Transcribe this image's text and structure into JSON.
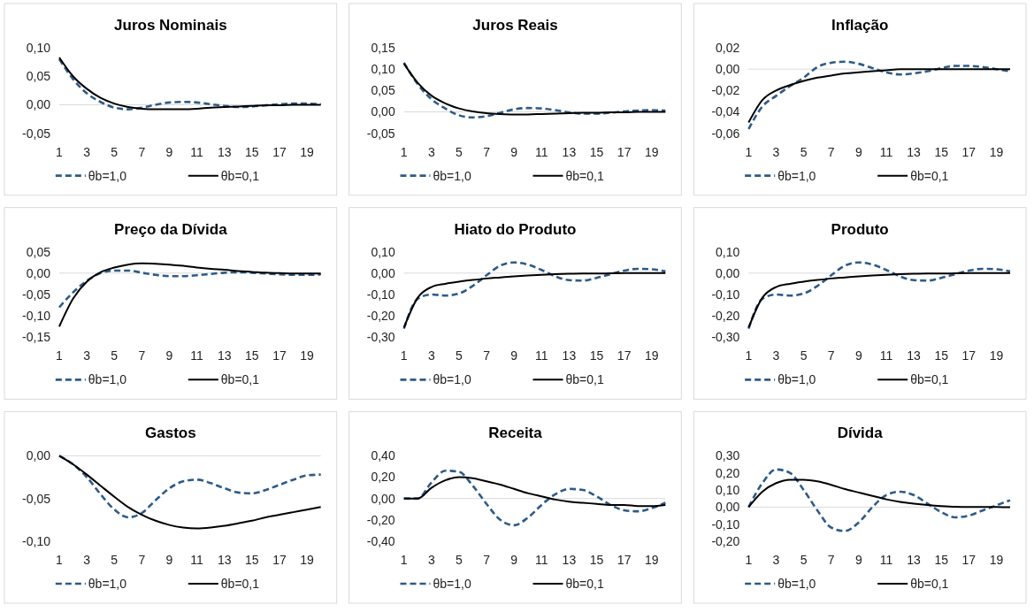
{
  "chart_data": [
    {
      "type": "line",
      "title": "Juros Nominais",
      "x": [
        1,
        2,
        3,
        4,
        5,
        6,
        7,
        8,
        9,
        10,
        11,
        12,
        13,
        14,
        15,
        16,
        17,
        18,
        19,
        20
      ],
      "xlim": [
        1,
        20
      ],
      "xticks": [
        1,
        3,
        5,
        7,
        9,
        11,
        13,
        15,
        17,
        19
      ],
      "ylim": [
        -0.05,
        0.1
      ],
      "yticks": [
        {
          "value": -0.05,
          "label": "-0,05"
        },
        {
          "value": 0,
          "label": "0,00"
        },
        {
          "value": 0.05,
          "label": "0,05"
        },
        {
          "value": 0.1,
          "label": "0,10"
        }
      ],
      "legend": "bottom",
      "series": [
        {
          "name": "θb=1,0",
          "color": "#2e5b87",
          "line_style": "dashed",
          "values": [
            0.08,
            0.045,
            0.02,
            0.005,
            -0.005,
            -0.008,
            -0.005,
            0,
            0.004,
            0.005,
            0.004,
            0.001,
            -0.002,
            -0.004,
            -0.003,
            -0.001,
            0.001,
            0.002,
            0.002,
            0.001
          ]
        },
        {
          "name": "θb=0,1",
          "color": "#000000",
          "line_style": "solid",
          "values": [
            0.083,
            0.05,
            0.028,
            0.012,
            0.002,
            -0.004,
            -0.007,
            -0.008,
            -0.008,
            -0.008,
            -0.007,
            -0.005,
            -0.004,
            -0.003,
            -0.002,
            -0.001,
            -0.001,
            0,
            0,
            0
          ]
        }
      ]
    },
    {
      "type": "line",
      "title": "Juros Reais",
      "x": [
        1,
        2,
        3,
        4,
        5,
        6,
        7,
        8,
        9,
        10,
        11,
        12,
        13,
        14,
        15,
        16,
        17,
        18,
        19,
        20
      ],
      "xlim": [
        1,
        20
      ],
      "xticks": [
        1,
        3,
        5,
        7,
        9,
        11,
        13,
        15,
        17,
        19
      ],
      "ylim": [
        -0.05,
        0.15
      ],
      "yticks": [
        {
          "value": -0.05,
          "label": "-0,05"
        },
        {
          "value": 0,
          "label": "0,00"
        },
        {
          "value": 0.05,
          "label": "0,05"
        },
        {
          "value": 0.1,
          "label": "0,10"
        },
        {
          "value": 0.15,
          "label": "0,15"
        }
      ],
      "legend": "bottom",
      "series": [
        {
          "name": "θb=1,0",
          "color": "#2e5b87",
          "line_style": "dashed",
          "values": [
            0.115,
            0.065,
            0.03,
            0.008,
            -0.008,
            -0.013,
            -0.01,
            -0.002,
            0.006,
            0.009,
            0.008,
            0.004,
            -0.001,
            -0.004,
            -0.004,
            -0.002,
            0.001,
            0.003,
            0.004,
            0.003
          ]
        },
        {
          "name": "θb=0,1",
          "color": "#000000",
          "line_style": "solid",
          "values": [
            0.113,
            0.068,
            0.038,
            0.02,
            0.008,
            0.001,
            -0.003,
            -0.005,
            -0.006,
            -0.006,
            -0.005,
            -0.004,
            -0.003,
            -0.002,
            -0.002,
            -0.001,
            -0.001,
            0,
            0,
            0
          ]
        }
      ]
    },
    {
      "type": "line",
      "title": "Inflação",
      "x": [
        1,
        2,
        3,
        4,
        5,
        6,
        7,
        8,
        9,
        10,
        11,
        12,
        13,
        14,
        15,
        16,
        17,
        18,
        19,
        20
      ],
      "xlim": [
        1,
        20
      ],
      "xticks": [
        1,
        3,
        5,
        7,
        9,
        11,
        13,
        15,
        17,
        19
      ],
      "ylim": [
        -0.06,
        0.02
      ],
      "yticks": [
        {
          "value": -0.06,
          "label": "-0,06"
        },
        {
          "value": -0.04,
          "label": "-0,04"
        },
        {
          "value": -0.02,
          "label": "-0,02"
        },
        {
          "value": 0,
          "label": "0,00"
        },
        {
          "value": 0.02,
          "label": "0,02"
        }
      ],
      "legend": "bottom",
      "series": [
        {
          "name": "θb=1,0",
          "color": "#2e5b87",
          "line_style": "dashed",
          "values": [
            -0.056,
            -0.035,
            -0.025,
            -0.016,
            -0.008,
            0.002,
            0.006,
            0.007,
            0.005,
            0.001,
            -0.003,
            -0.005,
            -0.004,
            -0.002,
            0.001,
            0.003,
            0.003,
            0.002,
            0,
            -0.002
          ]
        },
        {
          "name": "θb=0,1",
          "color": "#000000",
          "line_style": "solid",
          "values": [
            -0.05,
            -0.029,
            -0.02,
            -0.015,
            -0.011,
            -0.008,
            -0.006,
            -0.004,
            -0.003,
            -0.002,
            -0.001,
            0,
            0,
            0,
            0,
            0,
            0,
            0,
            0,
            0
          ]
        }
      ]
    },
    {
      "type": "line",
      "title": "Preço da Dívida",
      "x": [
        1,
        2,
        3,
        4,
        5,
        6,
        7,
        8,
        9,
        10,
        11,
        12,
        13,
        14,
        15,
        16,
        17,
        18,
        19,
        20
      ],
      "xlim": [
        1,
        20
      ],
      "xticks": [
        1,
        3,
        5,
        7,
        9,
        11,
        13,
        15,
        17,
        19
      ],
      "ylim": [
        -0.15,
        0.05
      ],
      "yticks": [
        {
          "value": -0.15,
          "label": "-0,15"
        },
        {
          "value": -0.1,
          "label": "-0,10"
        },
        {
          "value": -0.05,
          "label": "-0,05"
        },
        {
          "value": 0,
          "label": "0,00"
        },
        {
          "value": 0.05,
          "label": "0,05"
        }
      ],
      "legend": "bottom",
      "series": [
        {
          "name": "θb=1,0",
          "color": "#2e5b87",
          "line_style": "dashed",
          "values": [
            -0.08,
            -0.045,
            -0.018,
            0,
            0.006,
            0.006,
            0.001,
            -0.004,
            -0.007,
            -0.007,
            -0.005,
            -0.002,
            0.001,
            0.002,
            0.001,
            -0.001,
            -0.003,
            -0.004,
            -0.004,
            -0.003
          ]
        },
        {
          "name": "θb=0,1",
          "color": "#000000",
          "line_style": "solid",
          "values": [
            -0.125,
            -0.06,
            -0.02,
            0.002,
            0.013,
            0.02,
            0.023,
            0.022,
            0.02,
            0.017,
            0.013,
            0.01,
            0.008,
            0.005,
            0.003,
            0.001,
            0,
            -0.001,
            -0.001,
            -0.001
          ]
        }
      ]
    },
    {
      "type": "line",
      "title": "Hiato do Produto",
      "x": [
        1,
        2,
        3,
        4,
        5,
        6,
        7,
        8,
        9,
        10,
        11,
        12,
        13,
        14,
        15,
        16,
        17,
        18,
        19,
        20
      ],
      "xlim": [
        1,
        20
      ],
      "xticks": [
        1,
        3,
        5,
        7,
        9,
        11,
        13,
        15,
        17,
        19
      ],
      "ylim": [
        -0.3,
        0.1
      ],
      "yticks": [
        {
          "value": -0.3,
          "label": "-0,30"
        },
        {
          "value": -0.2,
          "label": "-0,20"
        },
        {
          "value": -0.1,
          "label": "-0,10"
        },
        {
          "value": 0,
          "label": "0,00"
        },
        {
          "value": 0.1,
          "label": "0,10"
        }
      ],
      "legend": "bottom",
      "series": [
        {
          "name": "θb=1,0",
          "color": "#2e5b87",
          "line_style": "dashed",
          "values": [
            -0.26,
            -0.12,
            -0.1,
            -0.105,
            -0.095,
            -0.06,
            -0.01,
            0.035,
            0.05,
            0.04,
            0.015,
            -0.015,
            -0.033,
            -0.035,
            -0.022,
            -0.005,
            0.012,
            0.02,
            0.018,
            0.008
          ]
        },
        {
          "name": "θb=0,1",
          "color": "#000000",
          "line_style": "solid",
          "values": [
            -0.255,
            -0.115,
            -0.065,
            -0.05,
            -0.04,
            -0.032,
            -0.025,
            -0.02,
            -0.015,
            -0.011,
            -0.008,
            -0.005,
            -0.003,
            -0.002,
            -0.002,
            -0.001,
            0,
            0,
            0,
            0
          ]
        }
      ]
    },
    {
      "type": "line",
      "title": "Produto",
      "x": [
        1,
        2,
        3,
        4,
        5,
        6,
        7,
        8,
        9,
        10,
        11,
        12,
        13,
        14,
        15,
        16,
        17,
        18,
        19,
        20
      ],
      "xlim": [
        1,
        20
      ],
      "xticks": [
        1,
        3,
        5,
        7,
        9,
        11,
        13,
        15,
        17,
        19
      ],
      "ylim": [
        -0.3,
        0.1
      ],
      "yticks": [
        {
          "value": -0.3,
          "label": "-0,30"
        },
        {
          "value": -0.2,
          "label": "-0,20"
        },
        {
          "value": -0.1,
          "label": "-0,10"
        },
        {
          "value": 0,
          "label": "0,00"
        },
        {
          "value": 0.1,
          "label": "0,10"
        }
      ],
      "legend": "bottom",
      "series": [
        {
          "name": "θb=1,0",
          "color": "#2e5b87",
          "line_style": "dashed",
          "values": [
            -0.26,
            -0.12,
            -0.1,
            -0.105,
            -0.095,
            -0.06,
            -0.01,
            0.035,
            0.05,
            0.04,
            0.015,
            -0.015,
            -0.033,
            -0.035,
            -0.022,
            -0.005,
            0.012,
            0.02,
            0.018,
            0.008
          ]
        },
        {
          "name": "θb=0,1",
          "color": "#000000",
          "line_style": "solid",
          "values": [
            -0.255,
            -0.115,
            -0.065,
            -0.05,
            -0.04,
            -0.032,
            -0.025,
            -0.02,
            -0.015,
            -0.011,
            -0.008,
            -0.005,
            -0.003,
            -0.002,
            -0.002,
            -0.001,
            0,
            0,
            0,
            0
          ]
        }
      ]
    },
    {
      "type": "line",
      "title": "Gastos",
      "x": [
        1,
        2,
        3,
        4,
        5,
        6,
        7,
        8,
        9,
        10,
        11,
        12,
        13,
        14,
        15,
        16,
        17,
        18,
        19,
        20
      ],
      "xlim": [
        1,
        20
      ],
      "xticks": [
        1,
        3,
        5,
        7,
        9,
        11,
        13,
        15,
        17,
        19
      ],
      "ylim": [
        -0.1,
        0
      ],
      "yticks": [
        {
          "value": -0.1,
          "label": "-0,10"
        },
        {
          "value": -0.05,
          "label": "-0,05"
        },
        {
          "value": 0,
          "label": "0,00"
        }
      ],
      "legend": "bottom",
      "series": [
        {
          "name": "θb=1,0",
          "color": "#2e5b87",
          "line_style": "dashed",
          "values": [
            0,
            -0.01,
            -0.025,
            -0.045,
            -0.063,
            -0.072,
            -0.067,
            -0.052,
            -0.038,
            -0.03,
            -0.028,
            -0.032,
            -0.038,
            -0.043,
            -0.044,
            -0.04,
            -0.034,
            -0.028,
            -0.023,
            -0.022
          ]
        },
        {
          "name": "θb=0,1",
          "color": "#000000",
          "line_style": "solid",
          "values": [
            0,
            -0.01,
            -0.022,
            -0.035,
            -0.048,
            -0.06,
            -0.069,
            -0.076,
            -0.081,
            -0.084,
            -0.085,
            -0.084,
            -0.082,
            -0.079,
            -0.076,
            -0.072,
            -0.069,
            -0.066,
            -0.063,
            -0.06
          ]
        }
      ]
    },
    {
      "type": "line",
      "title": "Receita",
      "x": [
        1,
        2,
        3,
        4,
        5,
        6,
        7,
        8,
        9,
        10,
        11,
        12,
        13,
        14,
        15,
        16,
        17,
        18,
        19,
        20
      ],
      "xlim": [
        1,
        20
      ],
      "xticks": [
        1,
        3,
        5,
        7,
        9,
        11,
        13,
        15,
        17,
        19
      ],
      "ylim": [
        -0.4,
        0.4
      ],
      "yticks": [
        {
          "value": -0.4,
          "label": "-0,40"
        },
        {
          "value": -0.2,
          "label": "-0,20"
        },
        {
          "value": 0,
          "label": "0,00"
        },
        {
          "value": 0.2,
          "label": "0,20"
        },
        {
          "value": 0.4,
          "label": "0,40"
        }
      ],
      "legend": "bottom",
      "series": [
        {
          "name": "θb=1,0",
          "color": "#2e5b87",
          "line_style": "dashed",
          "values": [
            0,
            0,
            0.15,
            0.26,
            0.25,
            0.12,
            -0.05,
            -0.2,
            -0.25,
            -0.18,
            -0.06,
            0.04,
            0.09,
            0.08,
            0.02,
            -0.06,
            -0.11,
            -0.12,
            -0.09,
            -0.04
          ]
        },
        {
          "name": "θb=0,1",
          "color": "#000000",
          "line_style": "solid",
          "values": [
            0,
            0,
            0.1,
            0.17,
            0.2,
            0.19,
            0.16,
            0.13,
            0.09,
            0.05,
            0.02,
            -0.01,
            -0.03,
            -0.04,
            -0.05,
            -0.06,
            -0.06,
            -0.07,
            -0.07,
            -0.06
          ]
        }
      ]
    },
    {
      "type": "line",
      "title": "Dívida",
      "x": [
        1,
        2,
        3,
        4,
        5,
        6,
        7,
        8,
        9,
        10,
        11,
        12,
        13,
        14,
        15,
        16,
        17,
        18,
        19,
        20
      ],
      "xlim": [
        1,
        20
      ],
      "xticks": [
        1,
        3,
        5,
        7,
        9,
        11,
        13,
        15,
        17,
        19
      ],
      "ylim": [
        -0.2,
        0.3
      ],
      "yticks": [
        {
          "value": -0.2,
          "label": "-0,20"
        },
        {
          "value": -0.1,
          "label": "-0,10"
        },
        {
          "value": 0,
          "label": "0,00"
        },
        {
          "value": 0.1,
          "label": "0,10"
        },
        {
          "value": 0.2,
          "label": "0,20"
        },
        {
          "value": 0.3,
          "label": "0,30"
        }
      ],
      "legend": "bottom",
      "series": [
        {
          "name": "θb=1,0",
          "color": "#2e5b87",
          "line_style": "dashed",
          "values": [
            0,
            0.14,
            0.22,
            0.2,
            0.1,
            -0.02,
            -0.12,
            -0.14,
            -0.09,
            0,
            0.07,
            0.09,
            0.07,
            0.02,
            -0.03,
            -0.06,
            -0.05,
            -0.02,
            0.01,
            0.04
          ]
        },
        {
          "name": "θb=0,1",
          "color": "#000000",
          "line_style": "solid",
          "values": [
            0,
            0.09,
            0.14,
            0.16,
            0.16,
            0.15,
            0.13,
            0.105,
            0.085,
            0.065,
            0.045,
            0.03,
            0.02,
            0.012,
            0.006,
            0.002,
            0.001,
            0.001,
            0,
            -0.001
          ]
        }
      ]
    }
  ]
}
